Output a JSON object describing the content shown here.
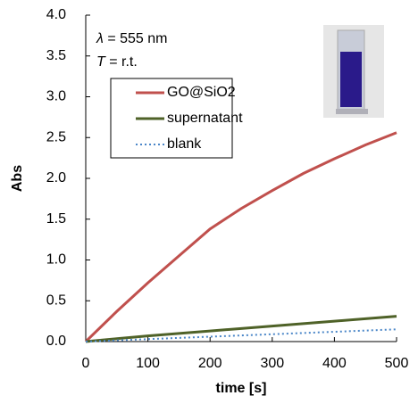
{
  "chart_data": {
    "type": "line",
    "annotations": [
      {
        "symbol": "λ",
        "text": " = 555 nm"
      },
      {
        "symbol": "T",
        "text": " = r.t."
      }
    ],
    "x_label": "time [s]",
    "y_label": "Abs",
    "x": [
      0,
      50,
      100,
      150,
      200,
      250,
      300,
      350,
      400,
      450,
      500
    ],
    "series": [
      {
        "name": "GO@SiO2",
        "color": "#c0504d",
        "style": "solid",
        "values": [
          0,
          0.37,
          0.72,
          1.05,
          1.38,
          1.63,
          1.85,
          2.06,
          2.24,
          2.41,
          2.56
        ]
      },
      {
        "name": "supernatant",
        "color": "#4f6228",
        "style": "solid",
        "values": [
          0,
          0.035,
          0.07,
          0.1,
          0.13,
          0.16,
          0.19,
          0.22,
          0.25,
          0.28,
          0.31
        ]
      },
      {
        "name": "blank",
        "color": "#4a86c8",
        "style": "dotted",
        "values": [
          0,
          0.015,
          0.03,
          0.045,
          0.06,
          0.075,
          0.09,
          0.105,
          0.12,
          0.135,
          0.15
        ]
      }
    ],
    "xlim": [
      0,
      500
    ],
    "xticks": [
      0,
      100,
      200,
      300,
      400,
      500
    ],
    "ylim": [
      0,
      4
    ],
    "yticks": [
      {
        "value": 0,
        "label": "0.0"
      },
      0.5,
      {
        "value": 1,
        "label": "1.0"
      },
      1.5,
      {
        "value": 2,
        "label": "2.0"
      },
      2.5,
      {
        "value": 3,
        "label": "3.0"
      },
      3.5,
      {
        "value": 4,
        "label": "4.0"
      }
    ],
    "grid": false,
    "legend": "upper-left"
  }
}
